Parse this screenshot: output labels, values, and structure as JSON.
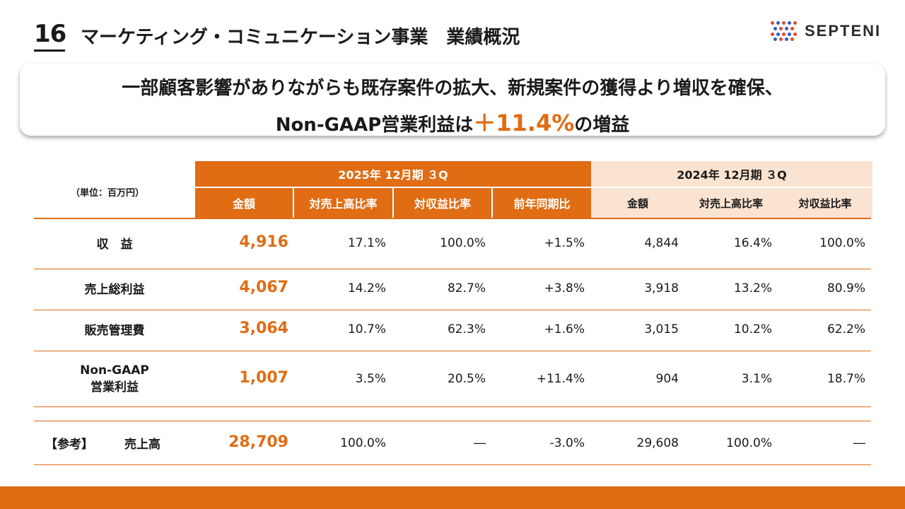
{
  "header": {
    "page_number": "16",
    "title": "マーケティング・コミュニケーション事業　業績概況",
    "logo_text": "SEPTENI"
  },
  "banner": {
    "line1": "一部顧客影響がありながらも既存案件の拡大、新規案件の獲得より増収を確保、",
    "line2_prefix": "Non-GAAP営業利益は",
    "line2_accent": "＋11.4%",
    "line2_suffix": "の増益"
  },
  "table": {
    "unit_label": "（単位：百万円）",
    "current_period": "2025年 12月期 ３Q",
    "prior_period": "2024年 12月期 ３Q",
    "current_columns": [
      "金額",
      "対売上高比率",
      "対収益比率",
      "前年同期比"
    ],
    "prior_columns": [
      "金額",
      "対売上高比率",
      "対収益比率"
    ],
    "rows": [
      {
        "label": "収　益",
        "cur": [
          "4,916",
          "17.1%",
          "100.0%",
          "+1.5%"
        ],
        "prev": [
          "4,844",
          "16.4%",
          "100.0%"
        ]
      },
      {
        "label": "売上総利益",
        "cur": [
          "4,067",
          "14.2%",
          "82.7%",
          "+3.8%"
        ],
        "prev": [
          "3,918",
          "13.2%",
          "80.9%"
        ]
      },
      {
        "label": "販売管理費",
        "cur": [
          "3,064",
          "10.7%",
          "62.3%",
          "+1.6%"
        ],
        "prev": [
          "3,015",
          "10.2%",
          "62.2%"
        ]
      },
      {
        "label_line1": "Non-GAAP",
        "label_line2": "営業利益",
        "cur": [
          "1,007",
          "3.5%",
          "20.5%",
          "+11.4%"
        ],
        "prev": [
          "904",
          "3.1%",
          "18.7%"
        ]
      }
    ],
    "reference_row": {
      "tag": "【参考】",
      "label": "売上高",
      "cur": [
        "28,709",
        "100.0%",
        "―",
        "-3.0%"
      ],
      "prev": [
        "29,608",
        "100.0%",
        "―"
      ]
    }
  },
  "colors": {
    "accent": "#e06c14",
    "accent_light": "#fbe3d1"
  }
}
